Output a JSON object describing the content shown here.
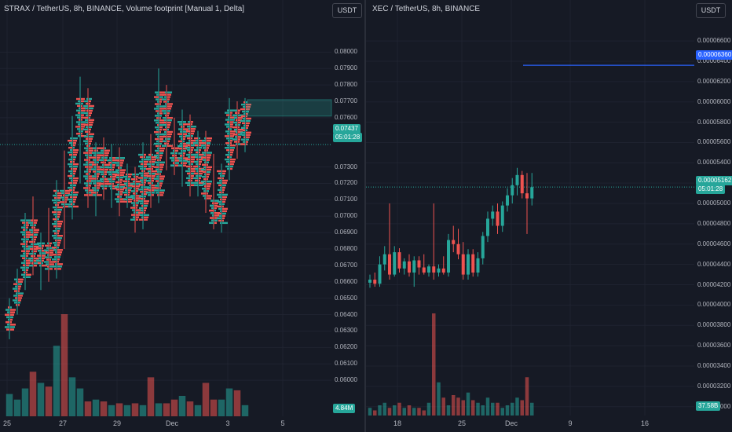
{
  "left_pane": {
    "title": "STRAX / TetherUS, 8h, BINANCE, Volume footprint [Manual 1, Delta]",
    "unit_label": "USDT",
    "price_badge": "0.07437",
    "timer_badge": "05:01:28",
    "volume_badge": "4.84M"
  },
  "right_pane": {
    "title": "XEC / TetherUS, 8h, BINANCE",
    "unit_label": "USDT",
    "hline_badge": "0.00006360",
    "price_badge": "0.00005162",
    "timer_badge": "05:01:28",
    "volume_badge": "37.58B"
  },
  "colors": {
    "up": "#26a69a",
    "down": "#ef5350",
    "hline": "#2962ff",
    "background": "#161a25"
  },
  "chart_data": [
    {
      "type": "candlestick",
      "symbol": "STRAX / TetherUS",
      "interval": "8h",
      "exchange": "BINANCE",
      "indicator": "Volume footprint [Manual 1, Delta]",
      "y_ticks": [
        "0.08000",
        "0.07900",
        "0.07800",
        "0.07700",
        "0.07600",
        "0.07500",
        "0.07300",
        "0.07200",
        "0.07100",
        "0.07000",
        "0.06900",
        "0.06800",
        "0.06700",
        "0.06600",
        "0.06500",
        "0.06400",
        "0.06300",
        "0.06200",
        "0.06100",
        "0.06000"
      ],
      "ylim": [
        0.059,
        0.0815
      ],
      "x_ticks": [
        "25",
        "27",
        "29",
        "Dec",
        "3",
        "5"
      ],
      "last_price": 0.07437,
      "candles": [
        {
          "o": 0.063,
          "h": 0.065,
          "l": 0.0625,
          "c": 0.0645
        },
        {
          "o": 0.0645,
          "h": 0.0668,
          "l": 0.064,
          "c": 0.0662
        },
        {
          "o": 0.0662,
          "h": 0.0702,
          "l": 0.0655,
          "c": 0.0698
        },
        {
          "o": 0.0698,
          "h": 0.0712,
          "l": 0.0664,
          "c": 0.0669
        },
        {
          "o": 0.0669,
          "h": 0.069,
          "l": 0.0655,
          "c": 0.0684
        },
        {
          "o": 0.0684,
          "h": 0.0705,
          "l": 0.066,
          "c": 0.0667
        },
        {
          "o": 0.0667,
          "h": 0.0722,
          "l": 0.0662,
          "c": 0.0716
        },
        {
          "o": 0.0716,
          "h": 0.074,
          "l": 0.068,
          "c": 0.0705
        },
        {
          "o": 0.0705,
          "h": 0.0761,
          "l": 0.0698,
          "c": 0.0748
        },
        {
          "o": 0.0748,
          "h": 0.0785,
          "l": 0.072,
          "c": 0.0772
        },
        {
          "o": 0.0772,
          "h": 0.0778,
          "l": 0.0705,
          "c": 0.0712
        },
        {
          "o": 0.0712,
          "h": 0.0745,
          "l": 0.07,
          "c": 0.0742
        },
        {
          "o": 0.0742,
          "h": 0.0748,
          "l": 0.071,
          "c": 0.0716
        },
        {
          "o": 0.0716,
          "h": 0.0744,
          "l": 0.0705,
          "c": 0.0736
        },
        {
          "o": 0.0736,
          "h": 0.0742,
          "l": 0.07,
          "c": 0.0708
        },
        {
          "o": 0.0708,
          "h": 0.0732,
          "l": 0.0705,
          "c": 0.0726
        },
        {
          "o": 0.0726,
          "h": 0.073,
          "l": 0.069,
          "c": 0.0697
        },
        {
          "o": 0.0697,
          "h": 0.0745,
          "l": 0.0692,
          "c": 0.0738
        },
        {
          "o": 0.0738,
          "h": 0.075,
          "l": 0.0705,
          "c": 0.0712
        },
        {
          "o": 0.0712,
          "h": 0.079,
          "l": 0.0708,
          "c": 0.0776
        },
        {
          "o": 0.0776,
          "h": 0.078,
          "l": 0.0728,
          "c": 0.0742
        },
        {
          "o": 0.0742,
          "h": 0.076,
          "l": 0.0725,
          "c": 0.073
        },
        {
          "o": 0.073,
          "h": 0.0765,
          "l": 0.0718,
          "c": 0.0758
        },
        {
          "o": 0.0758,
          "h": 0.0762,
          "l": 0.0712,
          "c": 0.0718
        },
        {
          "o": 0.0718,
          "h": 0.0752,
          "l": 0.0712,
          "c": 0.0748
        },
        {
          "o": 0.0748,
          "h": 0.0752,
          "l": 0.0702,
          "c": 0.071
        },
        {
          "o": 0.071,
          "h": 0.0738,
          "l": 0.0692,
          "c": 0.0695
        },
        {
          "o": 0.0695,
          "h": 0.0732,
          "l": 0.069,
          "c": 0.0728
        },
        {
          "o": 0.0728,
          "h": 0.0772,
          "l": 0.0722,
          "c": 0.0765
        },
        {
          "o": 0.0765,
          "h": 0.077,
          "l": 0.0735,
          "c": 0.0743
        },
        {
          "o": 0.0743,
          "h": 0.0772,
          "l": 0.0739,
          "c": 0.077
        }
      ],
      "volume": [
        1.2,
        0.9,
        1.5,
        2.4,
        1.8,
        1.6,
        3.8,
        5.5,
        2.1,
        1.5,
        0.8,
        0.9,
        0.8,
        0.6,
        0.7,
        0.6,
        0.7,
        0.6,
        2.1,
        0.7,
        0.7,
        0.9,
        1.1,
        0.8,
        0.6,
        1.8,
        0.9,
        0.9,
        1.5,
        1.4,
        0.6
      ]
    },
    {
      "type": "candlestick",
      "symbol": "XEC / TetherUS",
      "interval": "8h",
      "exchange": "BINANCE",
      "y_ticks": [
        "0.00006600",
        "0.00006400",
        "0.00006200",
        "0.00006000",
        "0.00005800",
        "0.00005600",
        "0.00005400",
        "0.00005200",
        "0.00005000",
        "0.00004800",
        "0.00004600",
        "0.00004400",
        "0.00004200",
        "0.00004000",
        "0.00003800",
        "0.00003600",
        "0.00003400",
        "0.00003200",
        "0.00003000"
      ],
      "ylim": [
        2.99e-05,
        6.74e-05
      ],
      "x_ticks": [
        "18",
        "25",
        "Dec",
        "9",
        "16"
      ],
      "hline": 6.36e-05,
      "last_price": 5.162e-05,
      "candles": [
        {
          "o": 4.22e-05,
          "h": 4.3e-05,
          "l": 4.17e-05,
          "c": 4.25e-05
        },
        {
          "o": 4.25e-05,
          "h": 4.32e-05,
          "l": 4.18e-05,
          "c": 4.21e-05
        },
        {
          "o": 4.21e-05,
          "h": 4.48e-05,
          "l": 4.18e-05,
          "c": 4.4e-05
        },
        {
          "o": 4.4e-05,
          "h": 4.58e-05,
          "l": 4.34e-05,
          "c": 4.5e-05
        },
        {
          "o": 4.5e-05,
          "h": 5e-05,
          "l": 4.25e-05,
          "c": 4.3e-05
        },
        {
          "o": 4.3e-05,
          "h": 4.58e-05,
          "l": 4.28e-05,
          "c": 4.52e-05
        },
        {
          "o": 4.52e-05,
          "h": 4.56e-05,
          "l": 4.32e-05,
          "c": 4.36e-05
        },
        {
          "o": 4.36e-05,
          "h": 4.46e-05,
          "l": 4.3e-05,
          "c": 4.43e-05
        },
        {
          "o": 4.43e-05,
          "h": 4.5e-05,
          "l": 4.28e-05,
          "c": 4.32e-05
        },
        {
          "o": 4.32e-05,
          "h": 4.48e-05,
          "l": 4.18e-05,
          "c": 4.44e-05
        },
        {
          "o": 4.44e-05,
          "h": 4.48e-05,
          "l": 4.3e-05,
          "c": 4.37e-05
        },
        {
          "o": 4.37e-05,
          "h": 4.5e-05,
          "l": 4.3e-05,
          "c": 4.32e-05
        },
        {
          "o": 4.32e-05,
          "h": 4.4e-05,
          "l": 4.28e-05,
          "c": 4.38e-05
        },
        {
          "o": 4.38e-05,
          "h": 5e-05,
          "l": 4.25e-05,
          "c": 4.32e-05
        },
        {
          "o": 4.32e-05,
          "h": 4.4e-05,
          "l": 4.28e-05,
          "c": 4.36e-05
        },
        {
          "o": 4.36e-05,
          "h": 4.48e-05,
          "l": 4.3e-05,
          "c": 4.32e-05
        },
        {
          "o": 4.32e-05,
          "h": 4.7e-05,
          "l": 4.28e-05,
          "c": 4.64e-05
        },
        {
          "o": 4.64e-05,
          "h": 4.78e-05,
          "l": 4.52e-05,
          "c": 4.6e-05
        },
        {
          "o": 4.6e-05,
          "h": 4.75e-05,
          "l": 4.45e-05,
          "c": 4.5e-05
        },
        {
          "o": 4.5e-05,
          "h": 4.62e-05,
          "l": 4.25e-05,
          "c": 4.3e-05
        },
        {
          "o": 4.3e-05,
          "h": 4.55e-05,
          "l": 4.25e-05,
          "c": 4.5e-05
        },
        {
          "o": 4.5e-05,
          "h": 4.55e-05,
          "l": 4.28e-05,
          "c": 4.32e-05
        },
        {
          "o": 4.32e-05,
          "h": 4.52e-05,
          "l": 4.28e-05,
          "c": 4.46e-05
        },
        {
          "o": 4.46e-05,
          "h": 4.72e-05,
          "l": 4.4e-05,
          "c": 4.68e-05
        },
        {
          "o": 4.68e-05,
          "h": 4.92e-05,
          "l": 4.62e-05,
          "c": 4.85e-05
        },
        {
          "o": 4.85e-05,
          "h": 4.98e-05,
          "l": 4.78e-05,
          "c": 4.92e-05
        },
        {
          "o": 4.92e-05,
          "h": 5e-05,
          "l": 4.7e-05,
          "c": 4.78e-05
        },
        {
          "o": 4.78e-05,
          "h": 5.02e-05,
          "l": 4.72e-05,
          "c": 4.98e-05
        },
        {
          "o": 4.98e-05,
          "h": 5.15e-05,
          "l": 4.92e-05,
          "c": 5.08e-05
        },
        {
          "o": 5.08e-05,
          "h": 5.25e-05,
          "l": 5e-05,
          "c": 5.18e-05
        },
        {
          "o": 5.18e-05,
          "h": 5.35e-05,
          "l": 5.08e-05,
          "c": 5.28e-05
        },
        {
          "o": 5.28e-05,
          "h": 5.32e-05,
          "l": 5.05e-05,
          "c": 5.1e-05
        },
        {
          "o": 5.1e-05,
          "h": 5.3e-05,
          "l": 4.7e-05,
          "c": 5.05e-05
        },
        {
          "o": 5.05e-05,
          "h": 5.3e-05,
          "l": 4.98e-05,
          "c": 5.16e-05
        }
      ],
      "volume": [
        0.3,
        0.2,
        0.4,
        0.5,
        0.3,
        0.4,
        0.5,
        0.3,
        0.4,
        0.3,
        0.3,
        0.2,
        0.5,
        4.0,
        1.3,
        0.7,
        0.4,
        0.8,
        0.7,
        0.6,
        0.9,
        0.6,
        0.5,
        0.4,
        0.7,
        0.5,
        0.5,
        0.3,
        0.4,
        0.5,
        0.7,
        0.6,
        1.5,
        0.5
      ]
    }
  ]
}
